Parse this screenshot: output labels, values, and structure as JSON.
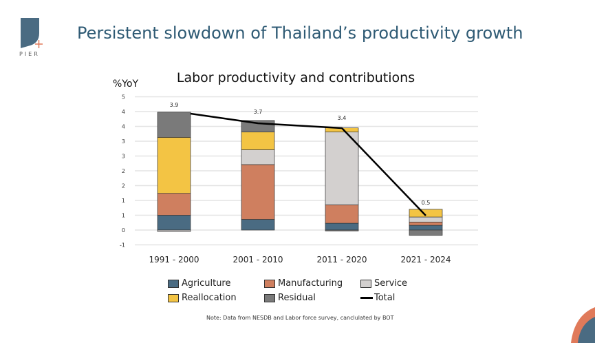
{
  "slide": {
    "title": "Persistent slowdown of Thailand’s productivity growth",
    "logo_text": "PIER",
    "note": "Note: Data from NESDB and Labor force survey, canclulated by BOT"
  },
  "colors": {
    "Agriculture": "#4a6b82",
    "Manufacturing": "#cf7f5f",
    "Service": "#d3d0cf",
    "Reallocation": "#f3c444",
    "Residual": "#7a7a7a",
    "Total": "#000000",
    "title": "#2e5a74"
  },
  "chart_data": {
    "type": "bar",
    "stacked": true,
    "title": "Labor productivity and contributions",
    "ylabel": "%YoY",
    "ylim": [
      -0.5,
      4.5
    ],
    "yticks": [
      4.5,
      4,
      3.5,
      3,
      2.5,
      2,
      1.5,
      1,
      0.5,
      0,
      -0.5
    ],
    "ytick_labels": [
      "5",
      "4",
      "4",
      "3",
      "3",
      "2",
      "2",
      "1",
      "1",
      "0",
      "-1"
    ],
    "grid": true,
    "legend_position": "bottom",
    "categories": [
      "1991 - 2000",
      "2001 - 2010",
      "2011 - 2020",
      "2021 - 2024"
    ],
    "series": [
      {
        "name": "Agriculture",
        "values": [
          0.5,
          0.36,
          0.23,
          0.16
        ]
      },
      {
        "name": "Manufacturing",
        "values": [
          0.74,
          1.85,
          0.62,
          0.11
        ]
      },
      {
        "name": "Service",
        "values": [
          -0.05,
          0.5,
          2.46,
          0.17
        ]
      },
      {
        "name": "Reallocation",
        "values": [
          1.89,
          0.6,
          0.14,
          0.26
        ]
      },
      {
        "name": "Residual",
        "values": [
          0.85,
          0.39,
          -0.03,
          -0.18
        ]
      }
    ],
    "line": {
      "name": "Total",
      "values": [
        3.9,
        3.7,
        3.4,
        0.5
      ],
      "labels": [
        "3.9",
        "3.7",
        "3.4",
        "0.5"
      ]
    }
  }
}
